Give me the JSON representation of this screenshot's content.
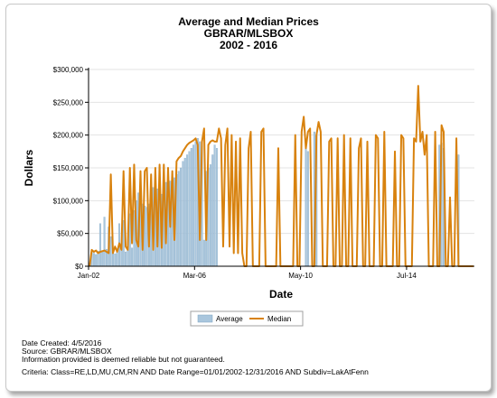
{
  "chart_data": {
    "type": "bar",
    "title": [
      "Average and Median Prices",
      "GBRAR/MLSBOX",
      "2002 - 2016"
    ],
    "xlabel": "Date",
    "ylabel": "Dollars",
    "ylim": [
      0,
      300000
    ],
    "y_ticks": [
      "$0",
      "$50,000",
      "$100,000",
      "$150,000",
      "$200,000",
      "$250,000",
      "$300,000"
    ],
    "x_ticks": [
      {
        "label": "Jan-02",
        "index": 0
      },
      {
        "label": "Mar-06",
        "index": 50
      },
      {
        "label": "May-10",
        "index": 100
      },
      {
        "label": "Jul-14",
        "index": 150
      }
    ],
    "x_range": [
      0,
      182
    ],
    "legend": {
      "position": "bottom",
      "entries": [
        "Average",
        "Median"
      ]
    },
    "grid": true,
    "series": [
      {
        "name": "Average",
        "kind": "bar",
        "color": "#a9c6dd",
        "values": [
          0,
          22000,
          20000,
          18000,
          23000,
          65000,
          24000,
          75000,
          26000,
          60000,
          45000,
          20000,
          19000,
          21000,
          65000,
          35000,
          70000,
          22000,
          25000,
          80000,
          28000,
          85000,
          100000,
          112000,
          105000,
          95000,
          92000,
          90000,
          95000,
          98000,
          120000,
          122000,
          118000,
          126000,
          110000,
          125000,
          128000,
          127000,
          130000,
          132000,
          135000,
          140000,
          145000,
          150000,
          160000,
          165000,
          170000,
          175000,
          180000,
          185000,
          190000,
          195000,
          190000,
          185000,
          40000,
          145000,
          150000,
          155000,
          170000,
          185000,
          180000,
          0,
          0,
          0,
          0,
          0,
          0,
          0,
          0,
          0,
          0,
          0,
          0,
          0,
          0,
          0,
          0,
          0,
          0,
          0,
          0,
          0,
          0,
          0,
          0,
          0,
          0,
          0,
          0,
          0,
          0,
          0,
          0,
          0,
          0,
          0,
          0,
          0,
          0,
          0,
          0,
          0,
          180000,
          175000,
          0,
          0,
          205000,
          200000,
          0,
          0,
          0,
          0,
          0,
          0,
          0,
          0,
          0,
          0,
          0,
          0,
          0,
          0,
          0,
          0,
          0,
          0,
          0,
          0,
          0,
          0,
          0,
          0,
          0,
          0,
          0,
          0,
          0,
          0,
          0,
          0,
          0,
          0,
          0,
          0,
          0,
          0,
          0,
          0,
          0,
          0,
          0,
          0,
          0,
          0,
          0,
          0,
          0,
          0,
          0,
          0,
          0,
          0,
          0,
          0,
          0,
          185000,
          188000,
          180000,
          0,
          0,
          0,
          0,
          0,
          0,
          170000,
          0,
          0,
          0,
          0,
          0,
          0,
          0,
          0,
          0,
          0
        ]
      },
      {
        "name": "Median",
        "kind": "line",
        "color": "#d8820e",
        "values": [
          0,
          25000,
          22000,
          24000,
          20000,
          22000,
          23000,
          24000,
          22000,
          20000,
          140000,
          20000,
          30000,
          22000,
          35000,
          25000,
          145000,
          30000,
          25000,
          150000,
          35000,
          155000,
          40000,
          30000,
          145000,
          25000,
          145000,
          150000,
          30000,
          140000,
          25000,
          150000,
          30000,
          155000,
          28000,
          155000,
          35000,
          150000,
          60000,
          145000,
          40000,
          160000,
          165000,
          168000,
          175000,
          180000,
          185000,
          188000,
          190000,
          192000,
          195000,
          185000,
          40000,
          190000,
          210000,
          40000,
          185000,
          190000,
          192000,
          190000,
          190000,
          210000,
          195000,
          30000,
          185000,
          210000,
          30000,
          200000,
          20000,
          190000,
          20000,
          195000,
          20000,
          0,
          0,
          180000,
          205000,
          0,
          0,
          0,
          0,
          205000,
          210000,
          0,
          0,
          0,
          0,
          0,
          0,
          180000,
          0,
          0,
          0,
          0,
          0,
          0,
          0,
          200000,
          0,
          0,
          205000,
          228000,
          180000,
          205000,
          210000,
          0,
          0,
          200000,
          220000,
          205000,
          0,
          0,
          0,
          190000,
          195000,
          0,
          0,
          195000,
          0,
          0,
          200000,
          0,
          0,
          195000,
          0,
          0,
          0,
          180000,
          195000,
          0,
          0,
          190000,
          0,
          0,
          0,
          200000,
          195000,
          0,
          0,
          205000,
          0,
          0,
          0,
          0,
          175000,
          0,
          0,
          200000,
          195000,
          0,
          0,
          0,
          0,
          195000,
          190000,
          275000,
          190000,
          205000,
          170000,
          200000,
          0,
          0,
          0,
          205000,
          0,
          0,
          215000,
          205000,
          0,
          0,
          105000,
          0,
          0,
          195000,
          0,
          0,
          0,
          0,
          0,
          0,
          0,
          0
        ]
      }
    ]
  },
  "footer": {
    "date_created": "Date Created: 4/5/2016",
    "source": "Source: GBRAR/MLSBOX",
    "disclaimer": "Information provided is deemed reliable but not guaranteed.",
    "criteria": "Criteria: Class=RE,LD,MU,CM,RN AND Date Range=01/01/2002-12/31/2016 AND Subdiv=LakAtFenn"
  }
}
